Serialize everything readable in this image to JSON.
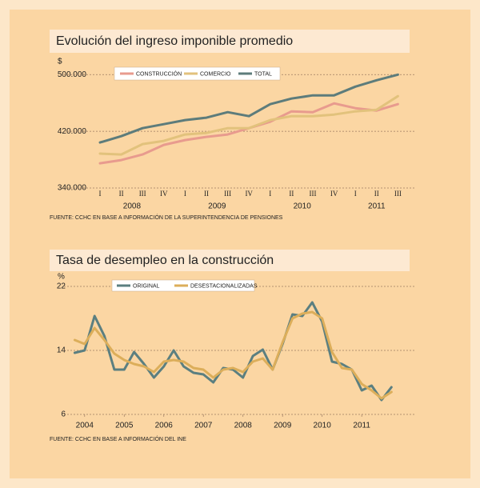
{
  "chart_data": [
    {
      "type": "line",
      "title": "Evolución del ingreso imponible promedio",
      "y_axis_label": "$",
      "source": "FUENTE: CCHC EN BASE A INFORMACIÓN DE LA SUPERINTENDENCIA DE PENSIONES",
      "categories": [
        "I",
        "II",
        "III",
        "IV",
        "I",
        "II",
        "III",
        "IV",
        "I",
        "II",
        "III",
        "IV",
        "I",
        "II",
        "III"
      ],
      "year_labels": [
        "2008",
        "2009",
        "2010",
        "2011"
      ],
      "ylim": [
        340000,
        515000
      ],
      "yticks": [
        {
          "value": 340000,
          "label": "340.000"
        },
        {
          "value": 420000,
          "label": "420.000"
        },
        {
          "value": 500000,
          "label": "500.000"
        }
      ],
      "grid": true,
      "series": [
        {
          "name": "CONSTRUCCIÓN",
          "color": "#e89b8e",
          "values": [
            374900,
            379400,
            387300,
            400800,
            407600,
            412100,
            415500,
            424500,
            433500,
            448200,
            447000,
            459400,
            452700,
            449300,
            458300
          ]
        },
        {
          "name": "COMERCIO",
          "color": "#e2c27c",
          "values": [
            388500,
            387300,
            402000,
            406500,
            415500,
            417700,
            424500,
            424500,
            435800,
            441400,
            441400,
            443700,
            448200,
            450400,
            469600
          ]
        },
        {
          "name": "TOTAL",
          "color": "#5d7c7b",
          "values": [
            404200,
            413200,
            424500,
            430100,
            435800,
            439200,
            447000,
            441400,
            458300,
            466200,
            470700,
            470700,
            483100,
            492100,
            500000
          ]
        }
      ]
    },
    {
      "type": "line",
      "title": "Tasa de desempleo en la construcción",
      "y_axis_label": "%",
      "source": "FUENTE: CCHC EN BASE A INFORMACIÓN DEL INE",
      "x": [
        2003.75,
        2004.0,
        2004.25,
        2004.5,
        2004.75,
        2005.0,
        2005.25,
        2005.5,
        2005.75,
        2006.0,
        2006.25,
        2006.5,
        2006.75,
        2007.0,
        2007.25,
        2007.5,
        2007.75,
        2008.0,
        2008.25,
        2008.5,
        2008.75,
        2009.0,
        2009.25,
        2009.5,
        2009.75,
        2010.0,
        2010.25,
        2010.5,
        2010.75,
        2011.0,
        2011.25,
        2011.5,
        2011.75
      ],
      "xlim": [
        2003.6,
        2012.25
      ],
      "xticks": [
        2004,
        2005,
        2006,
        2007,
        2008,
        2009,
        2010,
        2011
      ],
      "ylim": [
        6,
        23
      ],
      "yticks": [
        6,
        14,
        22
      ],
      "grid": true,
      "series": [
        {
          "name": "ORIGINAL",
          "color": "#5b7f80",
          "values": [
            13.7,
            14,
            18.3,
            15.8,
            11.6,
            11.6,
            13.8,
            12.3,
            10.6,
            12,
            14,
            12,
            11.2,
            11,
            10,
            11.8,
            11.6,
            10.6,
            13.3,
            14.1,
            11.6,
            14.8,
            18.5,
            18.3,
            20,
            17.6,
            12.6,
            12.3,
            11.6,
            9,
            9.6,
            7.8,
            9.4
          ]
        },
        {
          "name": "DESESTACIONALIZADAS",
          "color": "#dcae5a",
          "values": [
            15.3,
            14.8,
            16.8,
            15.3,
            13.6,
            12.8,
            12.3,
            12,
            11.3,
            12.6,
            12.8,
            12.6,
            11.8,
            11.6,
            10.6,
            11.6,
            11.8,
            11.3,
            12.6,
            13,
            11.6,
            15,
            18,
            18.6,
            18.8,
            18,
            13.8,
            11.8,
            11.6,
            9.8,
            9,
            8,
            8.8
          ]
        }
      ]
    }
  ]
}
